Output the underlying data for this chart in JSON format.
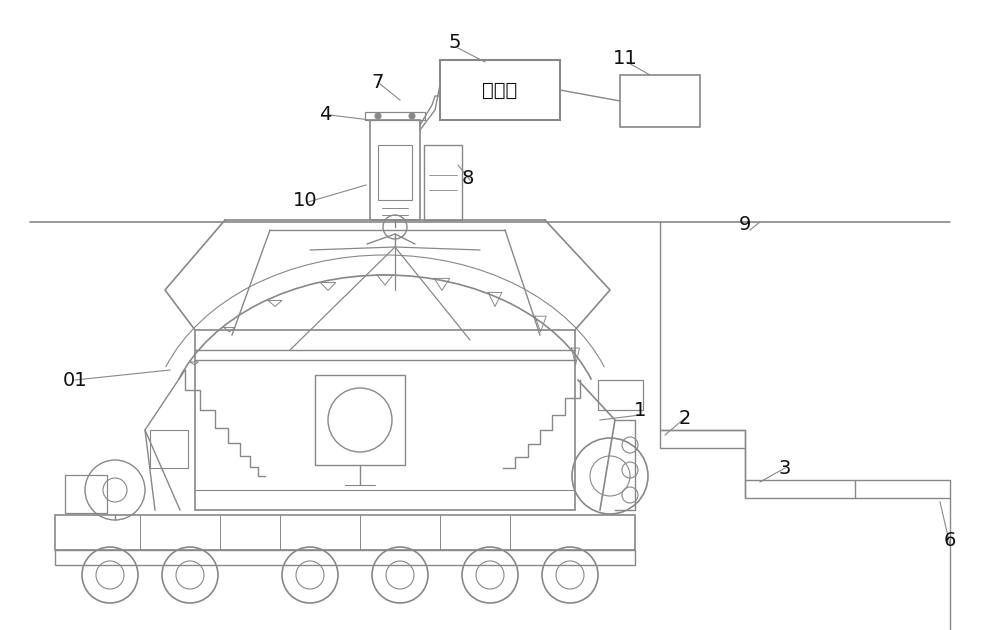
{
  "bg_color": "#ffffff",
  "line_color": "#888888",
  "label_color": "#111111",
  "figsize": [
    10.0,
    6.3
  ],
  "dpi": 100,
  "controller_text": "控制器",
  "controller_fontsize": 14
}
